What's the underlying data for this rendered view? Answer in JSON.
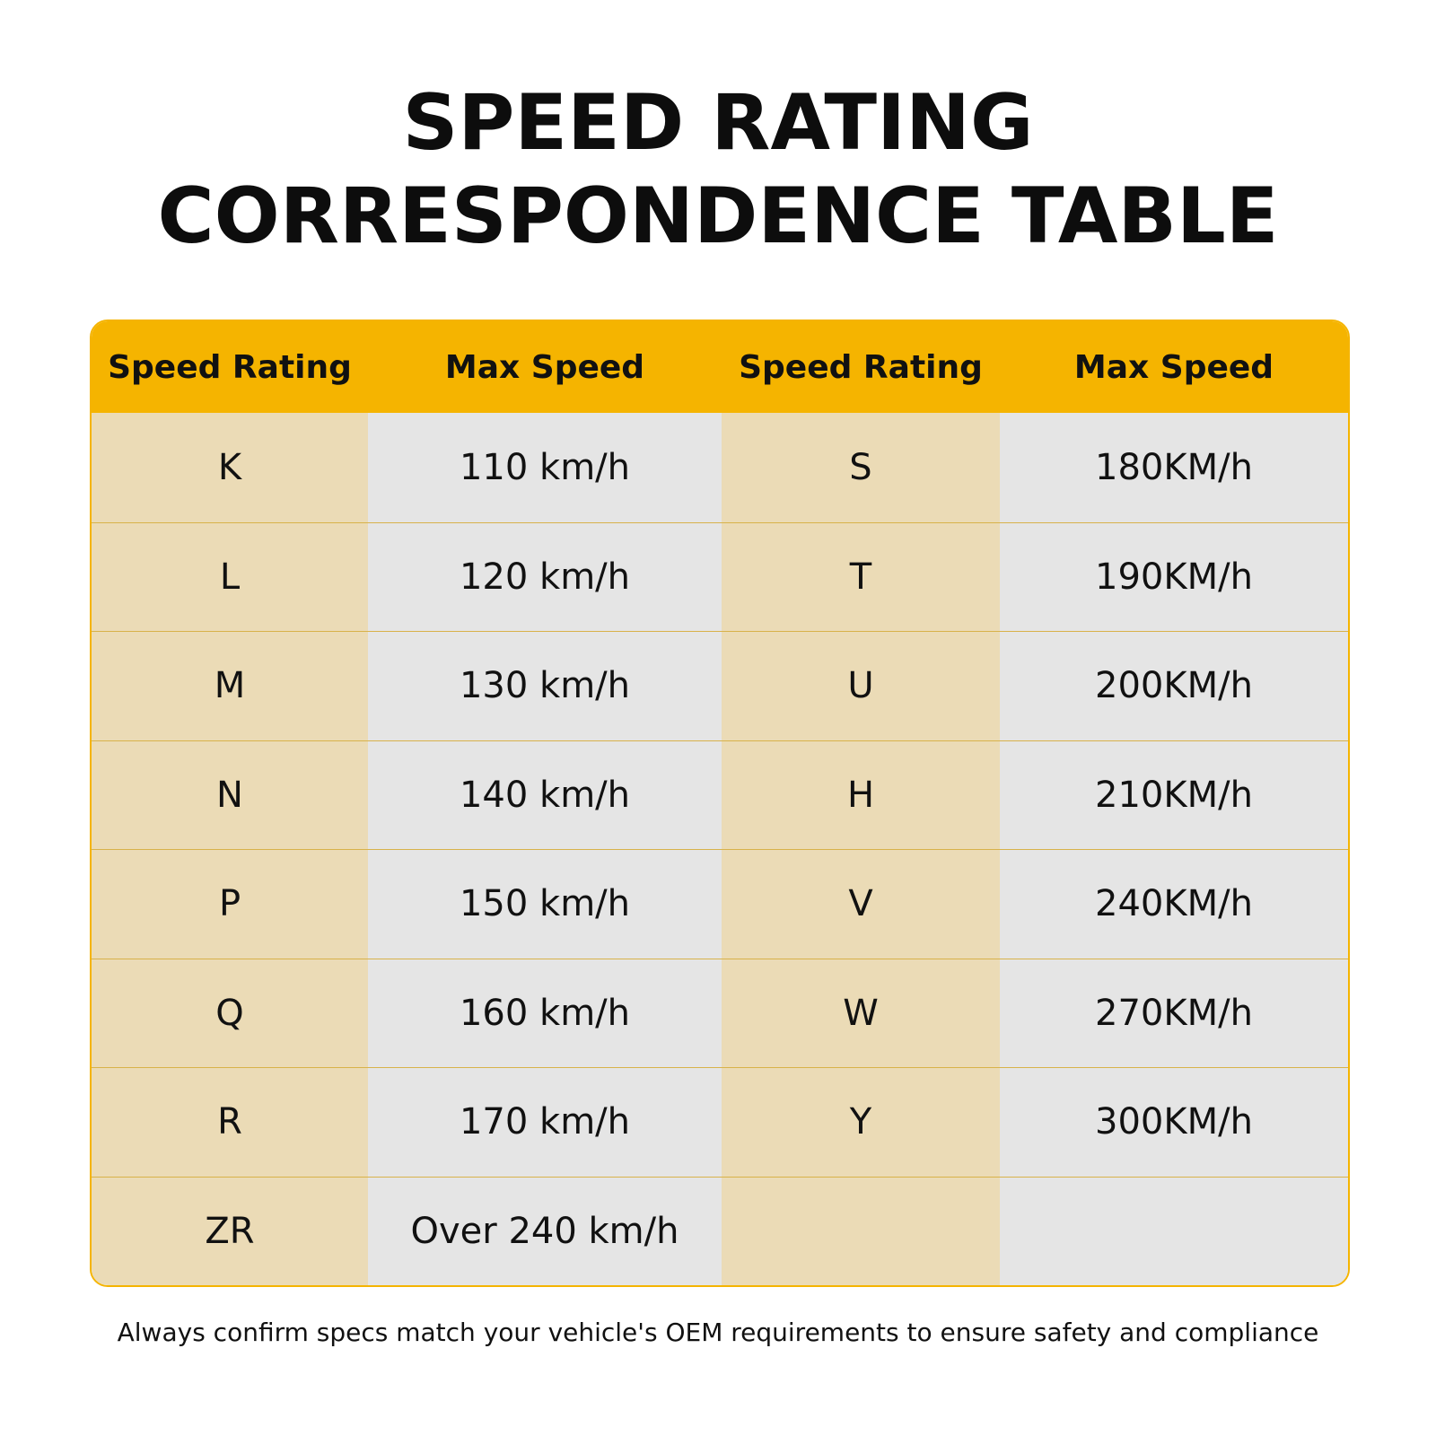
{
  "title": {
    "line1": "SPEED RATING",
    "line2": "CORRESPONDENCE TABLE"
  },
  "colors": {
    "accent": "#f5b400",
    "rating_column_bg": "#ebdbb6",
    "speed_column_bg": "#e5e5e5"
  },
  "table": {
    "headers": [
      "Speed Rating",
      "Max Speed",
      "Speed Rating",
      "Max Speed"
    ],
    "rows": [
      [
        "K",
        "110 km/h",
        "S",
        "180KM/h"
      ],
      [
        "L",
        "120 km/h",
        "T",
        "190KM/h"
      ],
      [
        "M",
        "130 km/h",
        "U",
        "200KM/h"
      ],
      [
        "N",
        "140 km/h",
        "H",
        "210KM/h"
      ],
      [
        "P",
        "150 km/h",
        "V",
        "240KM/h"
      ],
      [
        "Q",
        "160 km/h",
        "W",
        "270KM/h"
      ],
      [
        "R",
        "170 km/h",
        "Y",
        "300KM/h"
      ],
      [
        "ZR",
        "Over 240 km/h",
        "",
        ""
      ]
    ]
  },
  "footnote": "Always confirm specs match your vehicle's OEM requirements to ensure safety and compliance"
}
